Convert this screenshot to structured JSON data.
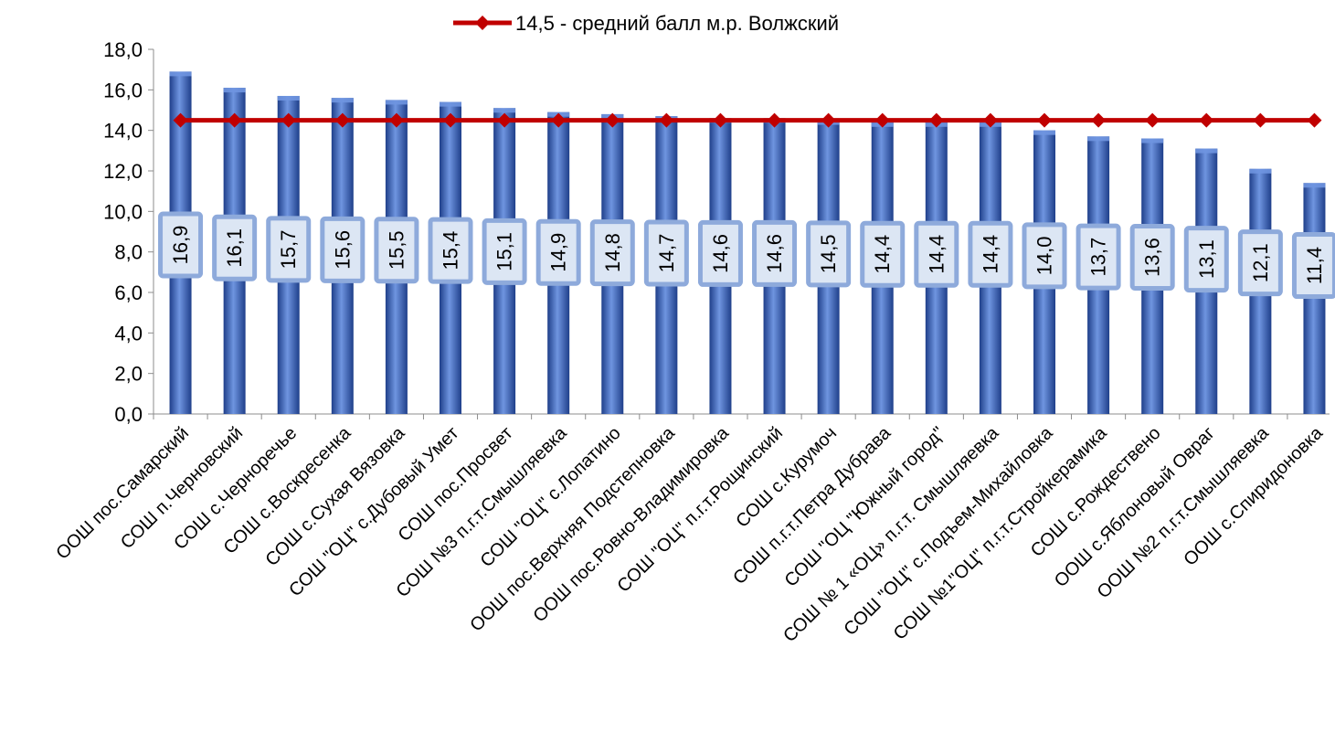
{
  "chart_data": {
    "type": "bar",
    "categories": [
      "ООШ пос.Самарский",
      "СОШ п.Черновский",
      "СОШ с.Черноречье",
      "СОШ с.Воскресенка",
      "СОШ с.Сухая Вязовка",
      "СОШ \"ОЦ\" с.Дубовый Умет",
      "СОШ пос.Просвет",
      "СОШ №3 п.г.т.Смышляевка",
      "СОШ \"ОЦ\" с.Лопатино",
      "ООШ пос.Верхняя Подстепновка",
      "ООШ пос.Ровно-Владимировка",
      "СОШ \"ОЦ\" п.г.т.Рощинский",
      "СОШ с.Курумоч",
      "СОШ п.г.т.Петра Дубрава",
      "СОШ \"ОЦ \"Южный город\"",
      "СОШ № 1 «ОЦ» п.г.т. Смышляевка",
      "СОШ \"ОЦ\" с.Подъем-Михайловка",
      "СОШ №1\"ОЦ\" п.г.т.Стройкерамика",
      "СОШ с.Рождествено",
      "ООШ с.Яблоновый Овраг",
      "ООШ №2 п.г.т.Смышляевка",
      "ООШ с.Спиридоновка"
    ],
    "values": [
      16.9,
      16.1,
      15.7,
      15.6,
      15.5,
      15.4,
      15.1,
      14.9,
      14.8,
      14.7,
      14.6,
      14.6,
      14.5,
      14.4,
      14.4,
      14.4,
      14.0,
      13.7,
      13.6,
      13.1,
      12.1,
      11.4
    ],
    "value_labels": [
      "16,9",
      "16,1",
      "15,7",
      "15,6",
      "15,5",
      "15,4",
      "15,1",
      "14,9",
      "14,8",
      "14,7",
      "14,6",
      "14,6",
      "14,5",
      "14,4",
      "14,4",
      "14,4",
      "14,0",
      "13,7",
      "13,6",
      "13,1",
      "12,1",
      "11,4"
    ],
    "series": [
      {
        "name": "14,5 - средний балл м.р. Волжский",
        "type": "line",
        "values": [
          14.5,
          14.5,
          14.5,
          14.5,
          14.5,
          14.5,
          14.5,
          14.5,
          14.5,
          14.5,
          14.5,
          14.5,
          14.5,
          14.5,
          14.5,
          14.5,
          14.5,
          14.5,
          14.5,
          14.5,
          14.5,
          14.5
        ]
      }
    ],
    "ylim": [
      0,
      18
    ],
    "yticks": [
      "0,0",
      "2,0",
      "4,0",
      "6,0",
      "8,0",
      "10,0",
      "12,0",
      "14,0",
      "16,0",
      "18,0"
    ],
    "legend_position": "top",
    "grid": false,
    "colors": {
      "bar": "#3b67c0",
      "bar_light": "#6f95e0",
      "bar_dark": "#1f3f8a",
      "line": "#c00000",
      "label_bg": "#dce6f4",
      "label_border": "#8eaadb"
    }
  }
}
